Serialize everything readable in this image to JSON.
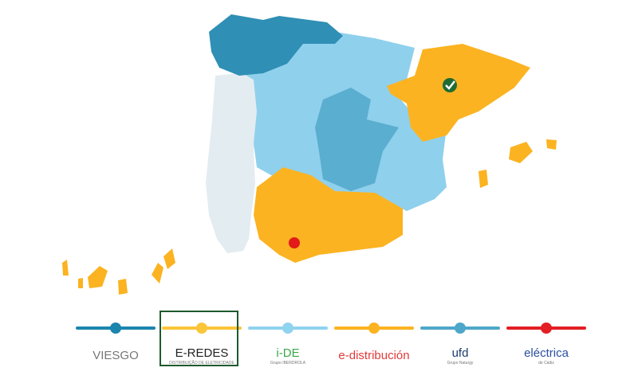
{
  "map": {
    "markers": [
      {
        "name": "green-check-marker",
        "color": "#1e6b35"
      },
      {
        "name": "red-location-marker",
        "color": "#e21a1a"
      }
    ],
    "region_colors": {
      "viesgo": "#2f8fb5",
      "ide": "#8fd0ec",
      "edistribucion": "#fbb321",
      "ufd": "#5aaed0",
      "portugal": "#e3ecf1"
    }
  },
  "legend": {
    "selected_index": 1,
    "items": [
      {
        "key": "viesgo",
        "color": "#1b86ad",
        "logo_main": "VIESGO",
        "logo_sub": "",
        "text_color": "#777777"
      },
      {
        "key": "e-redes",
        "color": "#fbc53a",
        "logo_main": "E-REDES",
        "logo_sub": "DISTRIBUIÇÃO DE ELETRICIDADE",
        "text_color": "#222222"
      },
      {
        "key": "i-de",
        "color": "#8fd3ef",
        "logo_main": "i-DE",
        "logo_sub": "Grupo IBERDROLA",
        "text_color": "#3aa84a"
      },
      {
        "key": "e-distribucion",
        "color": "#fbb321",
        "logo_main": "e-distribución",
        "logo_sub": "",
        "text_color": "#e03a3a"
      },
      {
        "key": "ufd",
        "color": "#4ea7c9",
        "logo_main": "ufd",
        "logo_sub": "Grupo Naturgy",
        "text_color": "#1d3b6e"
      },
      {
        "key": "electrica-de-cadiz",
        "color": "#e31e24",
        "logo_main": "eléctrica",
        "logo_sub": "de Cádiz",
        "text_color": "#2b4fa0"
      }
    ]
  }
}
